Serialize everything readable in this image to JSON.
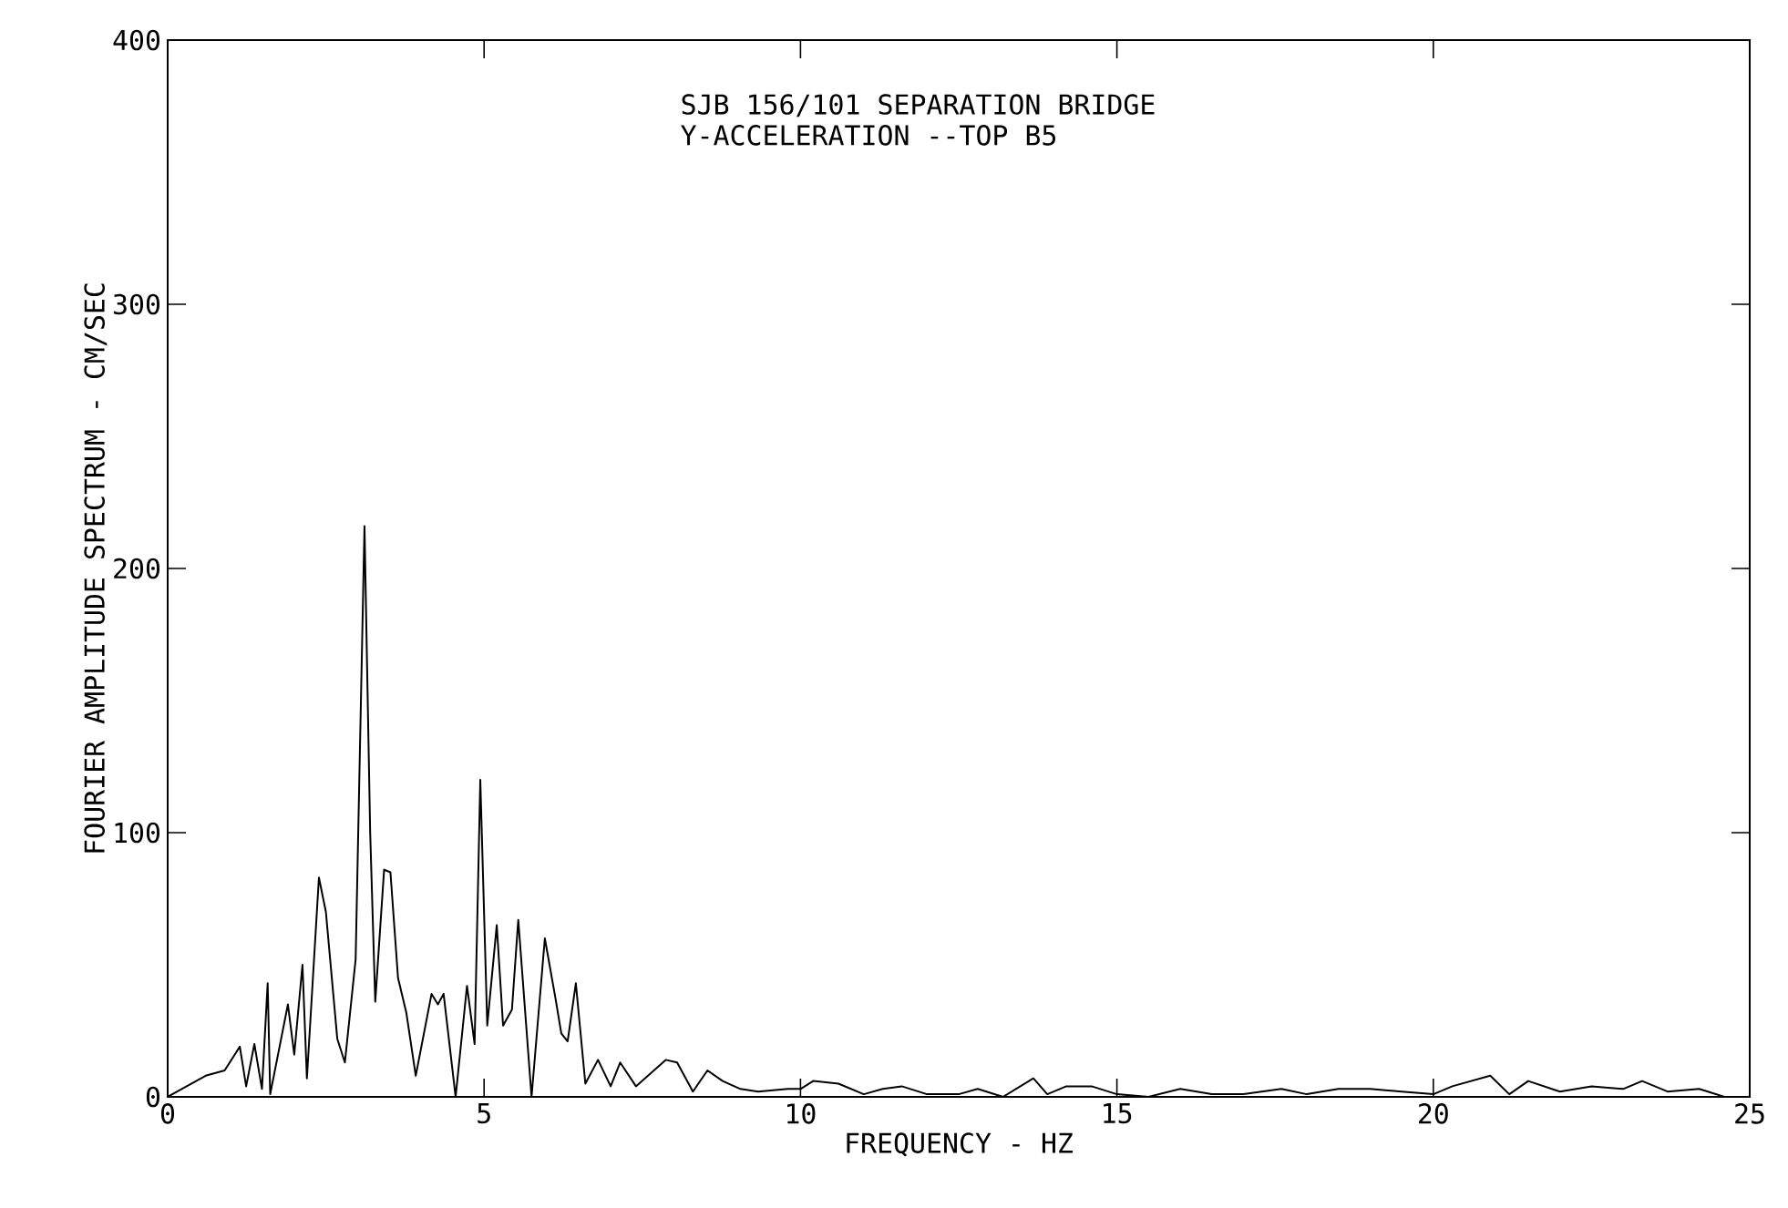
{
  "chart_data": {
    "type": "line",
    "title": "SJB 156/101 SEPARATION BRIDGE",
    "subtitle": "Y-ACCELERATION --TOP B5",
    "xlabel": "FREQUENCY - HZ",
    "ylabel": "FOURIER AMPLITUDE SPECTRUM - CM/SEC",
    "xlim": [
      0,
      25
    ],
    "ylim": [
      0,
      400
    ],
    "xticks": [
      0,
      5,
      10,
      15,
      20,
      25
    ],
    "yticks": [
      0,
      100,
      200,
      300,
      400
    ],
    "grid": false,
    "marker": "none",
    "line_style": "solid",
    "series": [
      {
        "color": "#000000",
        "x": [
          0,
          0.3,
          0.6,
          0.9,
          1.14,
          1.24,
          1.37,
          1.49,
          1.58,
          1.62,
          1.9,
          2.0,
          2.13,
          2.2,
          2.39,
          2.5,
          2.68,
          2.8,
          2.97,
          3.11,
          3.2,
          3.28,
          3.42,
          3.52,
          3.64,
          3.77,
          3.92,
          4.17,
          4.27,
          4.36,
          4.55,
          4.73,
          4.85,
          4.94,
          5.05,
          5.2,
          5.3,
          5.44,
          5.54,
          5.75,
          5.96,
          6.13,
          6.22,
          6.32,
          6.45,
          6.6,
          6.8,
          7.0,
          7.15,
          7.4,
          7.87,
          8.05,
          8.3,
          8.53,
          8.77,
          9.05,
          9.33,
          9.8,
          10.0,
          10.2,
          10.6,
          11.0,
          11.3,
          11.6,
          12.0,
          12.5,
          12.8,
          13.2,
          13.68,
          13.9,
          14.2,
          14.6,
          15.0,
          15.5,
          16.0,
          16.5,
          17.0,
          17.6,
          18.0,
          18.5,
          19.0,
          19.5,
          20.0,
          20.3,
          20.9,
          21.2,
          21.5,
          22.0,
          22.5,
          23.0,
          23.3,
          23.7,
          24.2,
          24.6,
          25.0
        ],
        "values": [
          0,
          4,
          8,
          10,
          19,
          4,
          20,
          3,
          43,
          1,
          35,
          16,
          50,
          7,
          83,
          70,
          22,
          13,
          52,
          216,
          100,
          36,
          86,
          85,
          45,
          32,
          8,
          39,
          35,
          39,
          0,
          42,
          20,
          120,
          27,
          65,
          27,
          33,
          67,
          0,
          60,
          37,
          24,
          21,
          43,
          5,
          14,
          4,
          13,
          4,
          14,
          13,
          2,
          10,
          6,
          3,
          2,
          3,
          3,
          6,
          5,
          1,
          3,
          4,
          1,
          1,
          3,
          0,
          7,
          1,
          4,
          4,
          1,
          0,
          3,
          1,
          1,
          3,
          1,
          3,
          3,
          2,
          1,
          4,
          8,
          1,
          6,
          2,
          4,
          3,
          6,
          2,
          3,
          0,
          0
        ]
      }
    ]
  }
}
